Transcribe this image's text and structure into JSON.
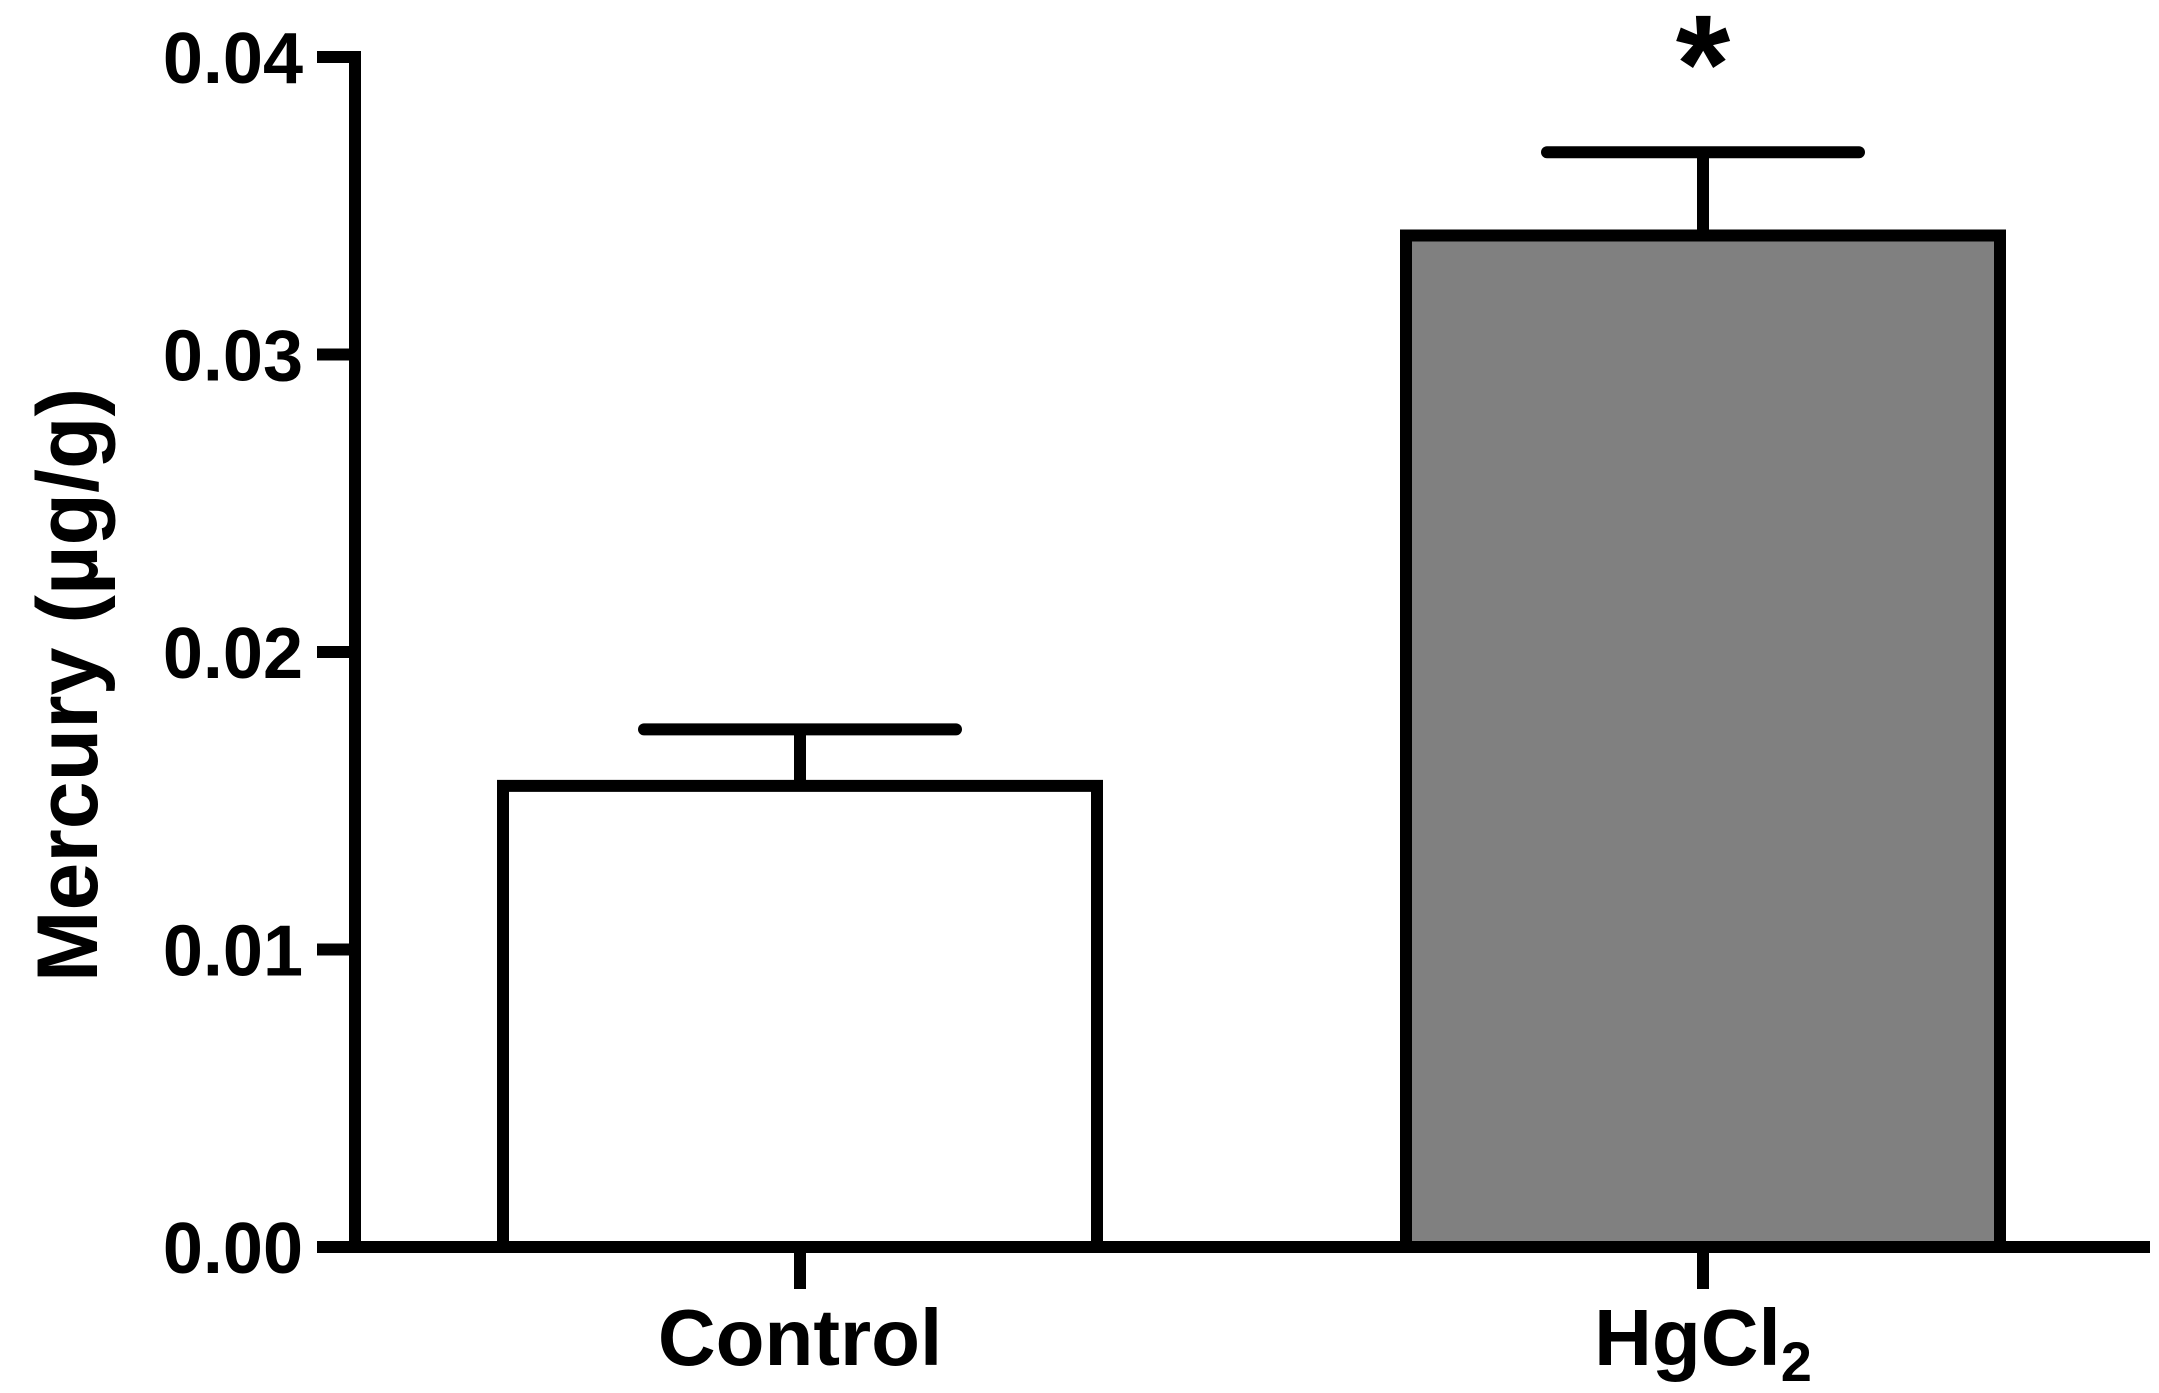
{
  "chart_data": {
    "type": "bar",
    "categories": [
      "Control",
      "HgCl2"
    ],
    "category_display": [
      {
        "text": "Control",
        "sub": ""
      },
      {
        "text": "HgCl",
        "sub": "2"
      }
    ],
    "values": [
      0.0155,
      0.034
    ],
    "errors": [
      0.0019,
      0.0028
    ],
    "fills": [
      "#ffffff",
      "#808080"
    ],
    "significance": [
      "",
      "*"
    ],
    "xlabel": "",
    "ylabel": "Mercury (µg/g)",
    "ylim": [
      0,
      0.04
    ],
    "yticks": [
      0.0,
      0.01,
      0.02,
      0.03,
      0.04
    ],
    "ytick_labels": [
      "0.00",
      "0.01",
      "0.02",
      "0.03",
      "0.04"
    ],
    "grid": false,
    "legend": "none"
  }
}
